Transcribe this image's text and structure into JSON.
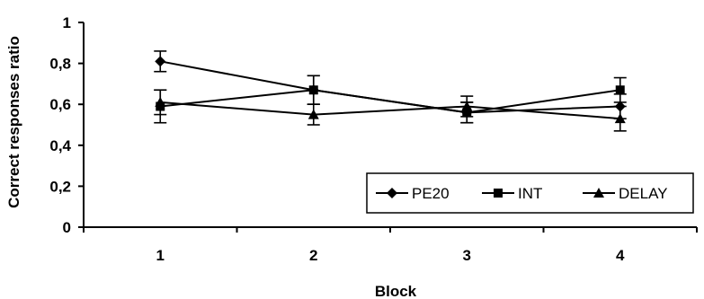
{
  "chart_data": {
    "type": "line",
    "xlabel": "Block",
    "ylabel": "Correct responses ratio",
    "categories": [
      "1",
      "2",
      "3",
      "4"
    ],
    "ylim": [
      0,
      1
    ],
    "yticks": [
      "0",
      "0,2",
      "0,4",
      "0,6",
      "0,8",
      "1"
    ],
    "grid": false,
    "legend_position": "bottom-right",
    "series": [
      {
        "name": "PE20",
        "marker": "diamond",
        "values": [
          0.81,
          0.67,
          0.56,
          0.59
        ],
        "error": [
          0.05,
          0.07,
          0.05,
          0.06
        ]
      },
      {
        "name": "INT",
        "marker": "square",
        "values": [
          0.59,
          0.67,
          0.56,
          0.67
        ],
        "error": [
          0.08,
          0.07,
          0.05,
          0.06
        ]
      },
      {
        "name": "DELAY",
        "marker": "triangle",
        "values": [
          0.61,
          0.55,
          0.59,
          0.53
        ],
        "error": [
          0.06,
          0.05,
          0.05,
          0.06
        ]
      }
    ]
  }
}
